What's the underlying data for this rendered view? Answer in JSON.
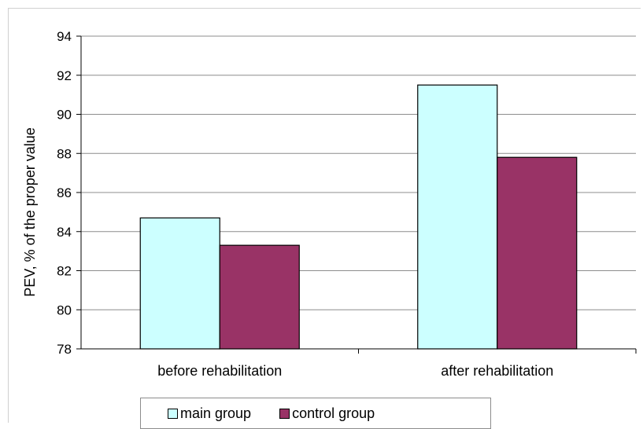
{
  "chart_data": {
    "type": "bar",
    "title": "",
    "xlabel": "",
    "ylabel": "PEV, % of the proper value",
    "categories": [
      "before rehabilitation",
      "after rehabilitation"
    ],
    "series": [
      {
        "name": "main group",
        "values": [
          84.7,
          91.5
        ],
        "color": "#ccffff"
      },
      {
        "name": "control group",
        "values": [
          83.3,
          87.8
        ],
        "color": "#993366"
      }
    ],
    "ylim": [
      78,
      94
    ],
    "yticks": [
      78,
      80,
      82,
      84,
      86,
      88,
      90,
      92,
      94
    ],
    "grid": true,
    "legend_position": "bottom"
  }
}
